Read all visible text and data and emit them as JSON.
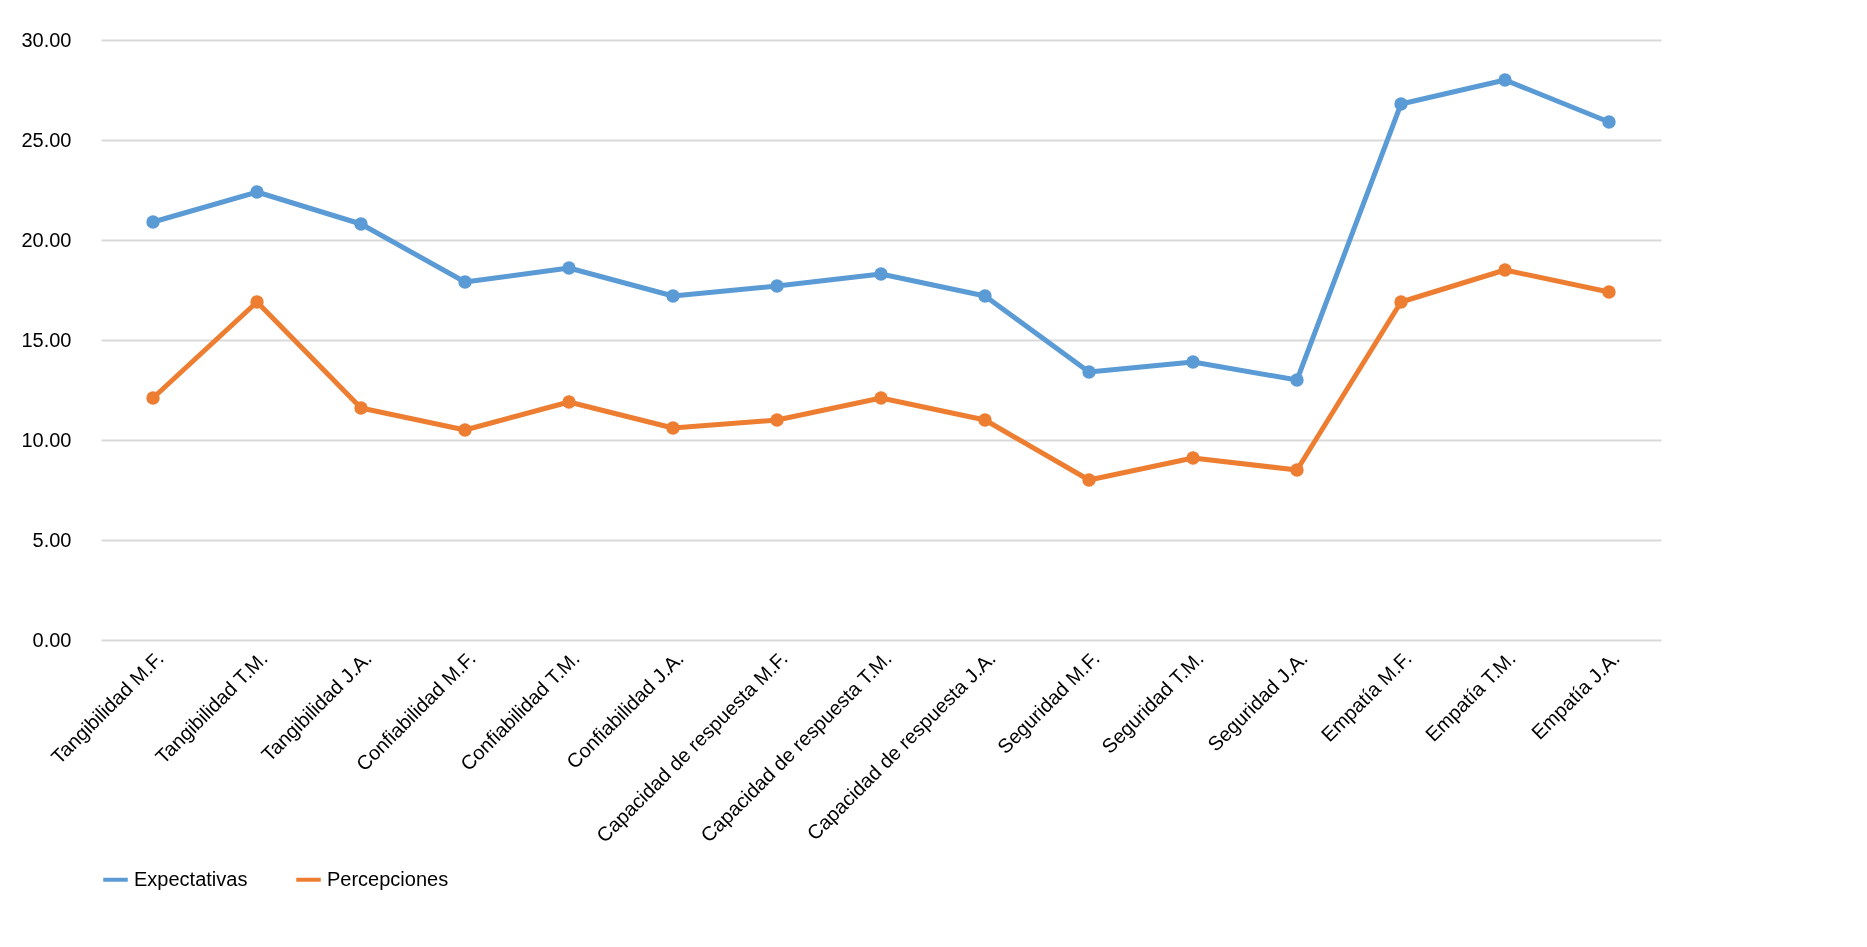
{
  "chart_data": {
    "type": "line",
    "categories": [
      "Tangibilidad M.F.",
      "Tangibilidad T.M.",
      "Tangibilidad J.A.",
      "Confiabilidad M.F.",
      "Confiabilidad T.M.",
      "Confiabilidad J.A.",
      "Capacidad de respuesta M.F.",
      "Capacidad de respuesta T.M.",
      "Capacidad de respuesta J.A.",
      "Seguridad M.F.",
      "Seguridad T.M.",
      "Seguridad J.A.",
      "Empatía M.F.",
      "Empatía T.M.",
      "Empatía J.A."
    ],
    "series": [
      {
        "name": "Expectativas",
        "color": "#5b9bd5",
        "values": [
          20.9,
          22.4,
          20.8,
          17.9,
          18.6,
          17.2,
          17.7,
          18.3,
          17.2,
          13.4,
          13.9,
          13.0,
          26.8,
          28.0,
          25.9
        ]
      },
      {
        "name": "Percepciones",
        "color": "#ed7d31",
        "values": [
          12.1,
          16.9,
          11.6,
          10.5,
          11.9,
          10.6,
          11.0,
          12.1,
          11.0,
          8.0,
          9.1,
          8.5,
          16.9,
          18.5,
          17.4
        ]
      }
    ],
    "ylim": [
      0,
      30
    ],
    "yticks": [
      {
        "value": 0,
        "label": "0.00"
      },
      {
        "value": 5,
        "label": "5.00"
      },
      {
        "value": 10,
        "label": "10.00"
      },
      {
        "value": 15,
        "label": "15.00"
      },
      {
        "value": 20,
        "label": "20.00"
      },
      {
        "value": 25,
        "label": "25.00"
      },
      {
        "value": 30,
        "label": "30.00"
      }
    ],
    "grid": "y",
    "legend": "bottom",
    "marker": "circle",
    "line_style": "solid"
  }
}
